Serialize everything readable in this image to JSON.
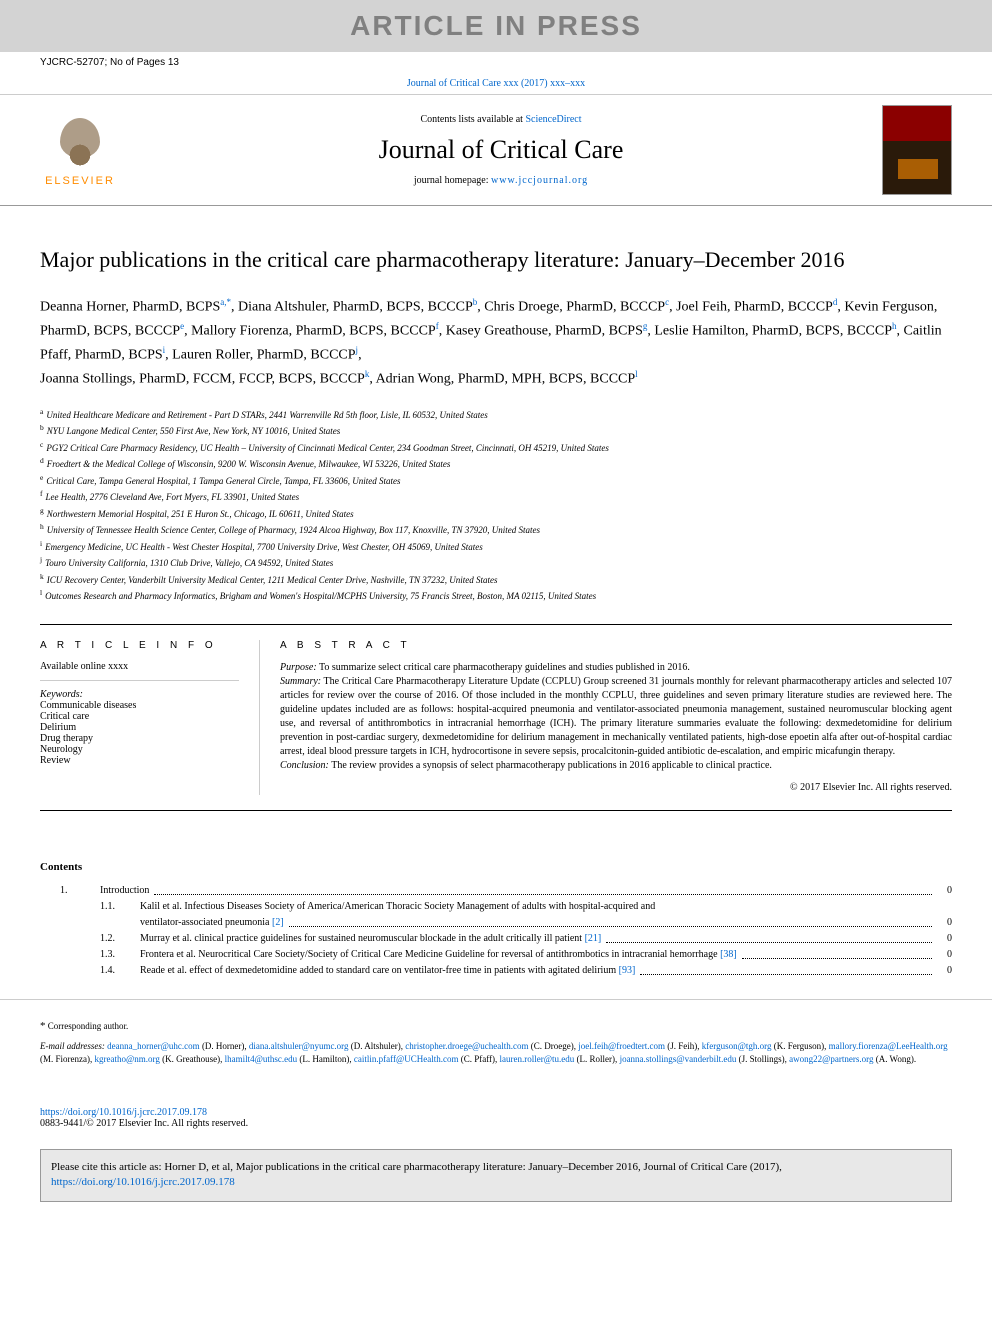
{
  "banner": "ARTICLE IN PRESS",
  "header_left": "YJCRC-52707; No of Pages 13",
  "journal_link_top": "Journal of Critical Care xxx (2017) xxx–xxx",
  "contents_available": "Contents lists available at",
  "sciencedirect": "ScienceDirect",
  "journal_name": "Journal of Critical Care",
  "homepage_label": "journal homepage:",
  "homepage_url": "www.jccjournal.org",
  "elsevier": "ELSEVIER",
  "title": "Major publications in the critical care pharmacotherapy literature: January–December 2016",
  "authors": [
    {
      "name": "Deanna Horner, PharmD, BCPS",
      "refs": "a,*"
    },
    {
      "name": "Diana Altshuler, PharmD, BCPS, BCCCP",
      "refs": "b"
    },
    {
      "name": "Chris Droege, PharmD, BCCCP",
      "refs": "c"
    },
    {
      "name": "Joel Feih, PharmD, BCCCP",
      "refs": "d"
    },
    {
      "name": "Kevin Ferguson, PharmD, BCPS, BCCCP",
      "refs": "e"
    },
    {
      "name": "Mallory Fiorenza, PharmD, BCPS, BCCCP",
      "refs": "f"
    },
    {
      "name": "Kasey Greathouse, PharmD, BCPS",
      "refs": "g"
    },
    {
      "name": "Leslie Hamilton, PharmD, BCPS, BCCCP",
      "refs": "h"
    },
    {
      "name": "Caitlin Pfaff, PharmD, BCPS",
      "refs": "i"
    },
    {
      "name": "Lauren Roller, PharmD, BCCCP",
      "refs": "j"
    },
    {
      "name": "Joanna Stollings, PharmD, FCCM, FCCP, BCPS, BCCCP",
      "refs": "k"
    },
    {
      "name": "Adrian Wong, PharmD, MPH, BCPS, BCCCP",
      "refs": "l"
    }
  ],
  "affiliations": [
    {
      "ref": "a",
      "text": "United Healthcare Medicare and Retirement - Part D STARs, 2441 Warrenville Rd 5th floor, Lisle, IL 60532, United States"
    },
    {
      "ref": "b",
      "text": "NYU Langone Medical Center, 550 First Ave, New York, NY 10016, United States"
    },
    {
      "ref": "c",
      "text": "PGY2 Critical Care Pharmacy Residency, UC Health – University of Cincinnati Medical Center, 234 Goodman Street, Cincinnati, OH 45219, United States"
    },
    {
      "ref": "d",
      "text": "Froedtert & the Medical College of Wisconsin, 9200 W. Wisconsin Avenue, Milwaukee, WI 53226, United States"
    },
    {
      "ref": "e",
      "text": "Critical Care, Tampa General Hospital, 1 Tampa General Circle, Tampa, FL 33606, United States"
    },
    {
      "ref": "f",
      "text": "Lee Health, 2776 Cleveland Ave, Fort Myers, FL 33901, United States"
    },
    {
      "ref": "g",
      "text": "Northwestern Memorial Hospital, 251 E Huron St., Chicago, IL 60611, United States"
    },
    {
      "ref": "h",
      "text": "University of Tennessee Health Science Center, College of Pharmacy, 1924 Alcoa Highway, Box 117, Knoxville, TN 37920, United States"
    },
    {
      "ref": "i",
      "text": "Emergency Medicine, UC Health - West Chester Hospital, 7700 University Drive, West Chester, OH 45069, United States"
    },
    {
      "ref": "j",
      "text": "Touro University California, 1310 Club Drive, Vallejo, CA 94592, United States"
    },
    {
      "ref": "k",
      "text": "ICU Recovery Center, Vanderbilt University Medical Center, 1211 Medical Center Drive, Nashville, TN 37232, United States"
    },
    {
      "ref": "l",
      "text": "Outcomes Research and Pharmacy Informatics, Brigham and Women's Hospital/MCPHS University, 75 Francis Street, Boston, MA 02115, United States"
    }
  ],
  "info_heading": "A R T I C L E   I N F O",
  "available": "Available online xxxx",
  "keywords_label": "Keywords:",
  "keywords": [
    "Communicable diseases",
    "Critical care",
    "Delirium",
    "Drug therapy",
    "Neurology",
    "Review"
  ],
  "abstract_heading": "A B S T R A C T",
  "abstract": {
    "purpose_label": "Purpose:",
    "purpose": " To summarize select critical care pharmacotherapy guidelines and studies published in 2016.",
    "summary_label": "Summary:",
    "summary": " The Critical Care Pharmacotherapy Literature Update (CCPLU) Group screened 31 journals monthly for relevant pharmacotherapy articles and selected 107 articles for review over the course of 2016. Of those included in the monthly CCPLU, three guidelines and seven primary literature studies are reviewed here. The guideline updates included are as follows: hospital-acquired pneumonia and ventilator-associated pneumonia management, sustained neuromuscular blocking agent use, and reversal of antithrombotics in intracranial hemorrhage (ICH). The primary literature summaries evaluate the following: dexmedetomidine for delirium prevention in post-cardiac surgery, dexmedetomidine for delirium management in mechanically ventilated patients, high-dose epoetin alfa after out-of-hospital cardiac arrest, ideal blood pressure targets in ICH, hydrocortisone in severe sepsis, procalcitonin-guided antibiotic de-escalation, and empiric micafungin therapy.",
    "conclusion_label": "Conclusion:",
    "conclusion": " The review provides a synopsis of select pharmacotherapy publications in 2016 applicable to clinical practice.",
    "copyright": "© 2017 Elsevier Inc. All rights reserved."
  },
  "contents_heading": "Contents",
  "toc": [
    {
      "indent": 1,
      "num": "1.",
      "text": "Introduction",
      "page": "0"
    },
    {
      "indent": 2,
      "num": "1.1.",
      "text": "Kalil et al. Infectious Diseases Society of America/American Thoracic Society Management of adults with hospital-acquired and ventilator-associated pneumonia",
      "ref": "[2]",
      "page": "0",
      "wrap": true
    },
    {
      "indent": 2,
      "num": "1.2.",
      "text": "Murray et al. clinical practice guidelines for sustained neuromuscular blockade in the adult critically ill patient",
      "ref": "[21]",
      "page": "0"
    },
    {
      "indent": 2,
      "num": "1.3.",
      "text": "Frontera et al. Neurocritical Care Society/Society of Critical Care Medicine Guideline for reversal of antithrombotics in intracranial hemorrhage",
      "ref": "[38]",
      "page": "0"
    },
    {
      "indent": 2,
      "num": "1.4.",
      "text": "Reade et al. effect of dexmedetomidine added to standard care on ventilator-free time in patients with agitated delirium",
      "ref": "[93]",
      "page": "0"
    }
  ],
  "corr_author_label": "Corresponding author.",
  "email_label": "E-mail addresses:",
  "emails": [
    {
      "addr": "deanna_horner@uhc.com",
      "who": "(D. Horner)"
    },
    {
      "addr": "diana.altshuler@nyumc.org",
      "who": "(D. Altshuler)"
    },
    {
      "addr": "christopher.droege@uchealth.com",
      "who": "(C. Droege)"
    },
    {
      "addr": "joel.feih@froedtert.com",
      "who": "(J. Feih)"
    },
    {
      "addr": "kferguson@tgh.org",
      "who": "(K. Ferguson)"
    },
    {
      "addr": "mallory.fiorenza@LeeHealth.org",
      "who": "(M. Fiorenza)"
    },
    {
      "addr": "kgreatho@nm.org",
      "who": "(K. Greathouse)"
    },
    {
      "addr": "lhamilt4@uthsc.edu",
      "who": "(L. Hamilton)"
    },
    {
      "addr": "caitlin.pfaff@UCHealth.com",
      "who": "(C. Pfaff)"
    },
    {
      "addr": "lauren.roller@tu.edu",
      "who": "(L. Roller)"
    },
    {
      "addr": "joanna.stollings@vanderbilt.edu",
      "who": "(J. Stollings)"
    },
    {
      "addr": "awong22@partners.org",
      "who": "(A. Wong)."
    }
  ],
  "doi_url": "https://doi.org/10.1016/j.jcrc.2017.09.178",
  "issn_line": "0883-9441/© 2017 Elsevier Inc. All rights reserved.",
  "cite_text": "Please cite this article as: Horner D, et al, Major publications in the critical care pharmacotherapy literature: January–December 2016, Journal of Critical Care (2017),",
  "cite_url": "https://doi.org/10.1016/j.jcrc.2017.09.178"
}
